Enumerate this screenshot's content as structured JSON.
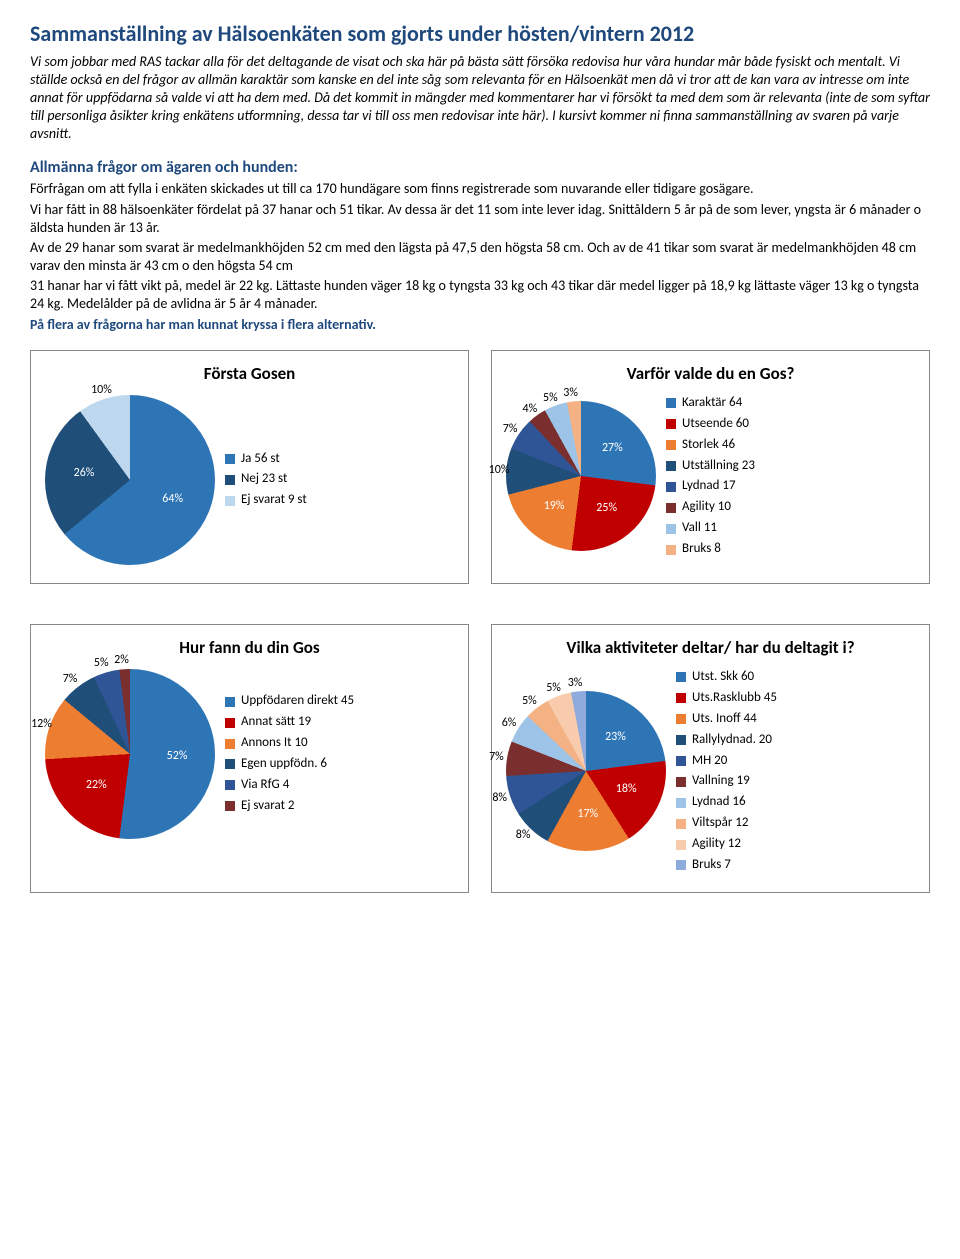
{
  "title": "Sammanställning av Hälsoenkäten som gjorts under hösten/vintern 2012",
  "intro": "Vi som jobbar med RAS tackar alla för det deltagande de visat och ska här på bästa sätt försöka redovisa hur våra hundar mår både fysiskt och mentalt. Vi ställde också en del frågor av allmän karaktär som kanske en del inte såg som relevanta för en Hälsoenkät men då vi tror att de kan vara av intresse om inte annat för uppfödarna så valde vi att ha dem med.  Då det kommit in mängder med kommentarer har vi försökt ta med dem som är relevanta (inte de som syftar till personliga åsikter kring enkätens utformning, dessa tar vi till oss men redovisar inte här). I kursivt kommer ni finna sammanställning av svaren på varje avsnitt.",
  "section1_head": "Allmänna frågor om ägaren och hunden:",
  "section1_p1": "Förfrågan om att fylla i enkäten skickades ut till ca 170 hundägare som finns registrerade som nuvarande eller tidigare gosägare.",
  "section1_p2": "Vi har fått in 88 hälsoenkäter fördelat på 37 hanar och 51 tikar. Av dessa är det 11 som inte lever idag. Snittåldern 5 år på de som lever, yngsta är 6 månader o äldsta hunden är 13 år.",
  "section1_p3": "Av de 29 hanar som svarat är medelmankhöjden 52 cm med den lägsta på 47,5  den högsta 58 cm. Och av de 41 tikar som svarat är medelmankhöjden 48 cm varav den minsta är 43 cm o den högsta 54 cm",
  "section1_p4": "31 hanar har vi fått vikt på, medel är 22 kg. Lättaste hunden väger 18 kg o tyngsta 33 kg och 43 tikar där medel ligger på 18,9 kg lättaste väger 13 kg o tyngsta 24 kg. Medelålder på de avlidna är 5 år 4 månader.",
  "blue_note": "På flera av frågorna har man kunnat kryssa i flera alternativ.",
  "chart1": {
    "title": "Första Gosen",
    "type": "pie",
    "slices": [
      {
        "label": "Ja 56 st",
        "pct": 64,
        "color": "#2e75b6",
        "display": "64%"
      },
      {
        "label": "Nej 23 st",
        "pct": 26,
        "color": "#1f4e79",
        "display": "26%"
      },
      {
        "label": "Ej svarat 9 st",
        "pct": 10,
        "color": "#bdd7ee",
        "display": "10%"
      }
    ],
    "pie_size": 170
  },
  "chart2": {
    "title": "Varför valde du en Gos?",
    "type": "pie",
    "slices": [
      {
        "label": "Karaktär 64",
        "pct": 27,
        "color": "#2e75b6",
        "display": "27%"
      },
      {
        "label": "Utseende 60",
        "pct": 25,
        "color": "#c00000",
        "display": "25%"
      },
      {
        "label": "Storlek 46",
        "pct": 19,
        "color": "#ed7d31",
        "display": "19%"
      },
      {
        "label": "Utställning 23",
        "pct": 10,
        "color": "#1f4e79",
        "display": "10%"
      },
      {
        "label": "Lydnad 17",
        "pct": 7,
        "color": "#2f5597",
        "display": "7%"
      },
      {
        "label": "Agility 10",
        "pct": 4,
        "color": "#7b2e2e",
        "display": "4%"
      },
      {
        "label": "Vall 11",
        "pct": 5,
        "color": "#9dc3e6",
        "display": "5%"
      },
      {
        "label": "Bruks 8",
        "pct": 3,
        "color": "#f4b183",
        "display": "3%"
      }
    ],
    "pie_size": 150
  },
  "chart3": {
    "title": "Hur fann du din Gos",
    "type": "pie",
    "slices": [
      {
        "label": "Uppfödaren direkt 45",
        "pct": 52,
        "color": "#2e75b6",
        "display": "52%"
      },
      {
        "label": "Annat sätt 19",
        "pct": 22,
        "color": "#c00000",
        "display": "22%"
      },
      {
        "label": "Annons It 10",
        "pct": 12,
        "color": "#ed7d31",
        "display": "12%"
      },
      {
        "label": "Egen uppfödn. 6",
        "pct": 7,
        "color": "#1f4e79",
        "display": "7%"
      },
      {
        "label": "Via RfG 4",
        "pct": 5,
        "color": "#2f5597",
        "display": "5%"
      },
      {
        "label": "Ej svarat 2",
        "pct": 2,
        "color": "#7b2e2e",
        "display": "2%"
      }
    ],
    "pie_size": 170
  },
  "chart4": {
    "title": "Vilka aktiviteter deltar/ har du deltagit i?",
    "type": "pie",
    "slices": [
      {
        "label": "Utst. Skk 60",
        "pct": 23,
        "color": "#2e75b6",
        "display": "23%"
      },
      {
        "label": "Uts.Rasklubb 45",
        "pct": 18,
        "color": "#c00000",
        "display": "18%"
      },
      {
        "label": "Uts. Inoff 44",
        "pct": 17,
        "color": "#ed7d31",
        "display": "17%"
      },
      {
        "label": "Rallylydnad. 20",
        "pct": 8,
        "color": "#1f4e79",
        "display": "8%"
      },
      {
        "label": "MH 20",
        "pct": 8,
        "color": "#2f5597",
        "display": "8%"
      },
      {
        "label": "Vallning 19",
        "pct": 7,
        "color": "#7b2e2e",
        "display": "7%"
      },
      {
        "label": "Lydnad 16",
        "pct": 6,
        "color": "#9dc3e6",
        "display": "6%"
      },
      {
        "label": "Viltspår 12",
        "pct": 5,
        "color": "#f4b183",
        "display": "5%"
      },
      {
        "label": "Agility 12",
        "pct": 5,
        "color": "#f8cbad",
        "display": "5%"
      },
      {
        "label": "Bruks 7",
        "pct": 3,
        "color": "#8faadc",
        "display": "3%"
      }
    ],
    "pie_size": 160
  }
}
